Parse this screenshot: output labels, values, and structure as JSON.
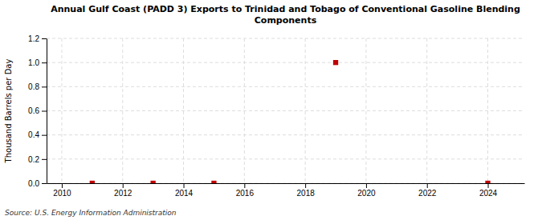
{
  "chart_data": {
    "type": "scatter",
    "title": "Annual Gulf Coast (PADD 3) Exports to Trinidad and Tobago of Conventional Gasoline Blending\nComponents",
    "y_label": "Thousand Barrels per Day",
    "annotations": [
      "Source: U.S. Energy Information Administration"
    ],
    "x": [
      2011,
      2013,
      2015,
      2019,
      2024
    ],
    "values": [
      0.0,
      0.0,
      0.0,
      1.0,
      0.0
    ],
    "color": "#c00000",
    "marker": "square",
    "xlim": [
      2009.5,
      2025.2
    ],
    "ylim": [
      0,
      1.2
    ],
    "xticks": [
      2010,
      2012,
      2014,
      2016,
      2018,
      2020,
      2022,
      2024
    ],
    "yticks": [
      {
        "value": 0,
        "label": "0.0"
      },
      0.2,
      0.4,
      0.6,
      0.8,
      {
        "value": 1,
        "label": "1.0"
      },
      1.2
    ],
    "grid": true
  }
}
